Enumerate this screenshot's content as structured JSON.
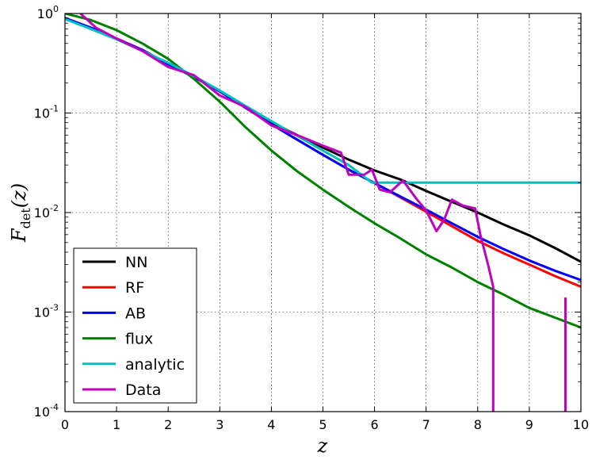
{
  "chart_data": {
    "type": "line",
    "title": "",
    "xlabel": "z",
    "ylabel_main": "F",
    "ylabel_sub": "det",
    "ylabel_arg": "(z)",
    "xlim": [
      0,
      10
    ],
    "ylim": [
      0.0001,
      1
    ],
    "yscale": "log",
    "grid": true,
    "legend_position": "lower-left",
    "x_ticks": [
      {
        "v": 0,
        "label": "0"
      },
      {
        "v": 1,
        "label": "1"
      },
      {
        "v": 2,
        "label": "2"
      },
      {
        "v": 3,
        "label": "3"
      },
      {
        "v": 4,
        "label": "4"
      },
      {
        "v": 5,
        "label": "5"
      },
      {
        "v": 6,
        "label": "6"
      },
      {
        "v": 7,
        "label": "7"
      },
      {
        "v": 8,
        "label": "8"
      },
      {
        "v": 9,
        "label": "9"
      },
      {
        "v": 10,
        "label": "10"
      }
    ],
    "y_ticks": [
      {
        "v": 1,
        "base": "10",
        "exp": "0"
      },
      {
        "v": 0.1,
        "base": "10",
        "exp": "-1"
      },
      {
        "v": 0.01,
        "base": "10",
        "exp": "-2"
      },
      {
        "v": 0.001,
        "base": "10",
        "exp": "-3"
      },
      {
        "v": 0.0001,
        "base": "10",
        "exp": "-4"
      }
    ],
    "series": [
      {
        "name": "NN",
        "color": "#000000",
        "x": [
          0,
          0.5,
          1,
          1.5,
          2,
          2.5,
          3,
          3.5,
          4,
          4.5,
          5,
          5.5,
          6,
          6.5,
          7,
          7.5,
          8,
          8.5,
          9,
          9.5,
          10
        ],
        "y": [
          0.9,
          0.72,
          0.56,
          0.43,
          0.31,
          0.23,
          0.165,
          0.115,
          0.081,
          0.06,
          0.045,
          0.034,
          0.0265,
          0.0215,
          0.0165,
          0.0128,
          0.01,
          0.0076,
          0.0059,
          0.0044,
          0.0032
        ]
      },
      {
        "name": "RF",
        "color": "#ff0000",
        "x": [
          0,
          0.5,
          1,
          1.5,
          2,
          2.5,
          3,
          3.5,
          4,
          4.5,
          5,
          5.5,
          6,
          6.5,
          7,
          7.5,
          8,
          8.5,
          9,
          9.5,
          10
        ],
        "y": [
          0.9,
          0.72,
          0.56,
          0.43,
          0.31,
          0.23,
          0.165,
          0.113,
          0.077,
          0.054,
          0.038,
          0.027,
          0.0198,
          0.0142,
          0.0102,
          0.0073,
          0.0052,
          0.0039,
          0.003,
          0.0023,
          0.0018
        ]
      },
      {
        "name": "AB",
        "color": "#0000ff",
        "x": [
          0,
          0.5,
          1,
          1.5,
          2,
          2.5,
          3,
          3.5,
          4,
          4.5,
          5,
          5.5,
          6,
          6.5,
          7,
          7.5,
          8,
          8.5,
          9,
          9.5,
          10
        ],
        "y": [
          0.9,
          0.72,
          0.56,
          0.43,
          0.31,
          0.23,
          0.165,
          0.113,
          0.077,
          0.054,
          0.038,
          0.027,
          0.0198,
          0.0145,
          0.0107,
          0.0078,
          0.0057,
          0.0043,
          0.0033,
          0.0026,
          0.0021
        ]
      },
      {
        "name": "flux",
        "color": "#008000",
        "x": [
          0,
          0.5,
          1,
          1.5,
          2,
          2.5,
          3,
          3.5,
          4,
          4.5,
          5,
          5.5,
          6,
          6.5,
          7,
          7.5,
          8,
          8.5,
          9,
          9.5,
          10
        ],
        "y": [
          1.0,
          0.86,
          0.68,
          0.5,
          0.35,
          0.22,
          0.13,
          0.072,
          0.042,
          0.026,
          0.017,
          0.0114,
          0.0078,
          0.0055,
          0.0038,
          0.0028,
          0.002,
          0.0015,
          0.0011,
          0.00088,
          0.0007
        ]
      },
      {
        "name": "analytic",
        "color": "#00bfbf",
        "x": [
          0,
          0.5,
          1,
          1.5,
          2,
          2.5,
          3,
          3.5,
          4,
          4.5,
          5,
          5.5,
          5.95,
          6,
          7,
          8,
          9,
          10
        ],
        "y": [
          0.88,
          0.7,
          0.55,
          0.42,
          0.32,
          0.235,
          0.168,
          0.118,
          0.083,
          0.059,
          0.042,
          0.03,
          0.02,
          0.02,
          0.02,
          0.02,
          0.02,
          0.02
        ]
      },
      {
        "name": "Data",
        "color": "#bf00bf",
        "x": [
          0.3,
          0.6,
          1,
          1.5,
          2,
          2.5,
          3,
          3.5,
          4,
          4.5,
          5,
          5.35,
          5.5,
          5.8,
          5.95,
          6.1,
          6.3,
          6.55,
          6.8,
          7.0,
          7.2,
          7.35,
          7.5,
          7.7,
          7.95,
          8.05,
          8.2,
          8.3,
          8.3
        ],
        "y": [
          1.0,
          0.72,
          0.56,
          0.42,
          0.29,
          0.24,
          0.15,
          0.115,
          0.075,
          0.06,
          0.047,
          0.04,
          0.024,
          0.024,
          0.027,
          0.017,
          0.016,
          0.021,
          0.014,
          0.0105,
          0.0065,
          0.0085,
          0.0135,
          0.0118,
          0.011,
          0.006,
          0.003,
          0.0018,
          0.0001
        ]
      },
      {
        "name": "",
        "color": "#bf00bf",
        "legend": false,
        "x": [
          9.7,
          9.7
        ],
        "y": [
          0.0014,
          0.0001
        ]
      }
    ]
  }
}
